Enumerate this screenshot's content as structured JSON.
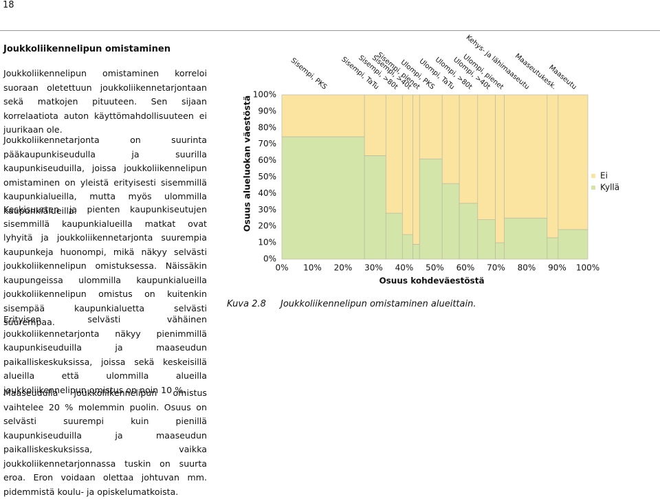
{
  "page_number": "18",
  "heading": "Joukkoliikennelipun omistaminen",
  "paragraphs": [
    "Joukkoliikennelipun omistaminen korreloi suoraan oletettuun joukkoliikennetarjontaan sekä matkojen pituuteen. Sen sijaan korrelaatiota auton käyttömahdollisuuteen ei juurikaan ole.",
    "Joukkoliikennetarjonta on suurinta pääkaupunkiseudulla ja suurilla kaupunkiseuduilla, joissa joukkoliikennelipun omistaminen on yleistä erityisesti sisemmillä kaupunkialueilla, mutta myös ulommilla kaupunkialueilla.",
    "Keskisuurten ja pienten kaupunkiseutujen sisemmillä kaupunkialueilla matkat ovat lyhyitä ja joukkoliikennetarjonta suurempia kaupunkeja huonompi, mikä näkyy selvästi joukkoliikennelipun omistuksessa. Näissäkin kaupungeissa ulommilla kaupunkialueilla joukkoliikennelipun omistus on kuitenkin sisempää kaupunkialuetta selvästi suurempaa.",
    "Erityisen selvästi vähäinen joukkoliikennetarjonta näkyy pienimmillä kaupunkiseuduilla ja maaseudun paikalliskeskuksissa, joissa sekä keskeisillä alueilla että ulommilla alueilla joukkoliikennelipun omistus on noin 10 %.",
    "Maaseudulla joukkoliikennelipun omistus vaihtelee 20 % molemmin puolin. Osuus on selvästi suurempi kuin pienillä kaupunkiseuduilla ja maaseudun paikalliskeskuksissa, vaikka joukkoliikennetarjonnassa tuskin on suurta eroa. Eron voidaan olettaa johtuvan mm. pidemmistä koulu- ja opiskelumatkoista."
  ],
  "caption": {
    "number": "Kuva 2.8",
    "text": "Joukkoliikennelipun omistaminen alueittain."
  },
  "chart_data": {
    "type": "mosaic",
    "y_label": "Osuus alueluokan väestöstä",
    "x_label": "Osuus kohdeväestöstä",
    "categories": [
      "Sisempi, PKS",
      "Sisempi, TaTu",
      "Sisempi, >80t",
      "Sisempi, >40t",
      "Sisempi, pienet",
      "Ulompi, PKS",
      "Ulompi, TaTu",
      "Ulompi, >80t",
      "Ulompi, >40t",
      "Ulompi, pienet",
      "Kehys- ja lähimaaseutu",
      "Maaseutukesk.",
      "Maaseutu"
    ],
    "widths": [
      27,
      7,
      5.4,
      3.4,
      2.2,
      7.4,
      5.6,
      6,
      5.8,
      2.9,
      14,
      3.6,
      9.7
    ],
    "series": [
      {
        "name": "Kyllä",
        "color": "#d3e5a8",
        "values": [
          74.5,
          63,
          28,
          15,
          9,
          61,
          46,
          34,
          24,
          10,
          25,
          13,
          18
        ]
      },
      {
        "name": "Ei",
        "color": "#fbe4a0",
        "values": [
          25.5,
          37,
          72,
          85,
          91,
          39,
          54,
          66,
          76,
          90,
          75,
          87,
          82
        ]
      }
    ],
    "xlim": [
      0,
      100
    ],
    "ylim": [
      0,
      100
    ],
    "xticks": [
      {
        "value": 0,
        "label": "0%"
      },
      {
        "value": 10,
        "label": "10%"
      },
      {
        "value": 20,
        "label": "20%"
      },
      {
        "value": 30,
        "label": "30%"
      },
      {
        "value": 40,
        "label": "40%"
      },
      {
        "value": 50,
        "label": "50%"
      },
      {
        "value": 60,
        "label": "60%"
      },
      {
        "value": 70,
        "label": "70%"
      },
      {
        "value": 80,
        "label": "80%"
      },
      {
        "value": 90,
        "label": "90%"
      },
      {
        "value": 100,
        "label": "100%"
      }
    ],
    "yticks": [
      {
        "value": 0,
        "label": "0%"
      },
      {
        "value": 10,
        "label": "10%"
      },
      {
        "value": 20,
        "label": "20%"
      },
      {
        "value": 30,
        "label": "30%"
      },
      {
        "value": 40,
        "label": "40%"
      },
      {
        "value": 50,
        "label": "50%"
      },
      {
        "value": 60,
        "label": "60%"
      },
      {
        "value": 70,
        "label": "70%"
      },
      {
        "value": 80,
        "label": "80%"
      },
      {
        "value": 90,
        "label": "90%"
      },
      {
        "value": 100,
        "label": "100%"
      }
    ],
    "legend": "right"
  }
}
